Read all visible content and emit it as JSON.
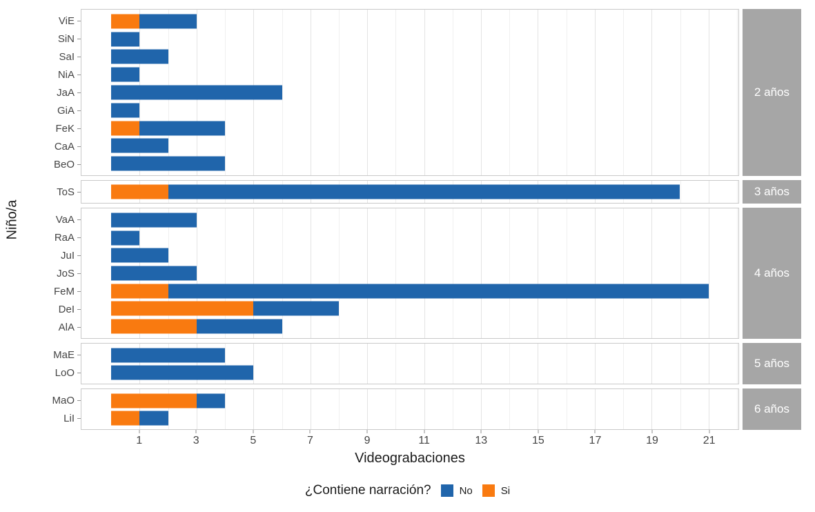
{
  "chart_data": {
    "type": "bar",
    "orientation": "horizontal",
    "stacked": true,
    "title": "",
    "xlabel": "Videograbaciones",
    "ylabel": "Niño/a",
    "xlim": [
      0,
      22.05
    ],
    "x_expand": 1.05,
    "x_ticks": [
      1,
      3,
      5,
      7,
      9,
      11,
      13,
      15,
      17,
      19,
      21
    ],
    "grid": "major-and-minor-vertical",
    "legend": {
      "position": "bottom",
      "title": "¿Contiene narración?",
      "entries": [
        {
          "label": "No",
          "color_key": "no"
        },
        {
          "label": "Si",
          "color_key": "si"
        }
      ]
    },
    "series_order_in_bar": [
      "si",
      "no"
    ],
    "facets": [
      {
        "label": "2 años",
        "rows": [
          {
            "name": "ViE",
            "si": 1,
            "no": 2
          },
          {
            "name": "SiN",
            "si": 0,
            "no": 1
          },
          {
            "name": "SaI",
            "si": 0,
            "no": 2
          },
          {
            "name": "NiA",
            "si": 0,
            "no": 1
          },
          {
            "name": "JaA",
            "si": 0,
            "no": 6
          },
          {
            "name": "GiA",
            "si": 0,
            "no": 1
          },
          {
            "name": "FeK",
            "si": 1,
            "no": 3
          },
          {
            "name": "CaA",
            "si": 0,
            "no": 2
          },
          {
            "name": "BeO",
            "si": 0,
            "no": 4
          }
        ]
      },
      {
        "label": "3 años",
        "rows": [
          {
            "name": "ToS",
            "si": 2,
            "no": 18
          }
        ]
      },
      {
        "label": "4 años",
        "rows": [
          {
            "name": "VaA",
            "si": 0,
            "no": 3
          },
          {
            "name": "RaA",
            "si": 0,
            "no": 1
          },
          {
            "name": "JuI",
            "si": 0,
            "no": 2
          },
          {
            "name": "JoS",
            "si": 0,
            "no": 3
          },
          {
            "name": "FeM",
            "si": 2,
            "no": 19
          },
          {
            "name": "DeI",
            "si": 5,
            "no": 3
          },
          {
            "name": "AlA",
            "si": 3,
            "no": 3
          }
        ]
      },
      {
        "label": "5 años",
        "rows": [
          {
            "name": "MaE",
            "si": 0,
            "no": 4
          },
          {
            "name": "LoO",
            "si": 0,
            "no": 5
          }
        ]
      },
      {
        "label": "6 años",
        "rows": [
          {
            "name": "MaO",
            "si": 3,
            "no": 1
          },
          {
            "name": "LiI",
            "si": 1,
            "no": 1
          }
        ]
      }
    ],
    "colors": {
      "no": "#2065ab",
      "si": "#f97a10",
      "strip_bg": "#a6a6a6",
      "strip_text": "#ffffff",
      "grid_major": "#e3e3e3",
      "grid_minor": "#efefef",
      "panel_border": "#c9c9c9"
    }
  }
}
